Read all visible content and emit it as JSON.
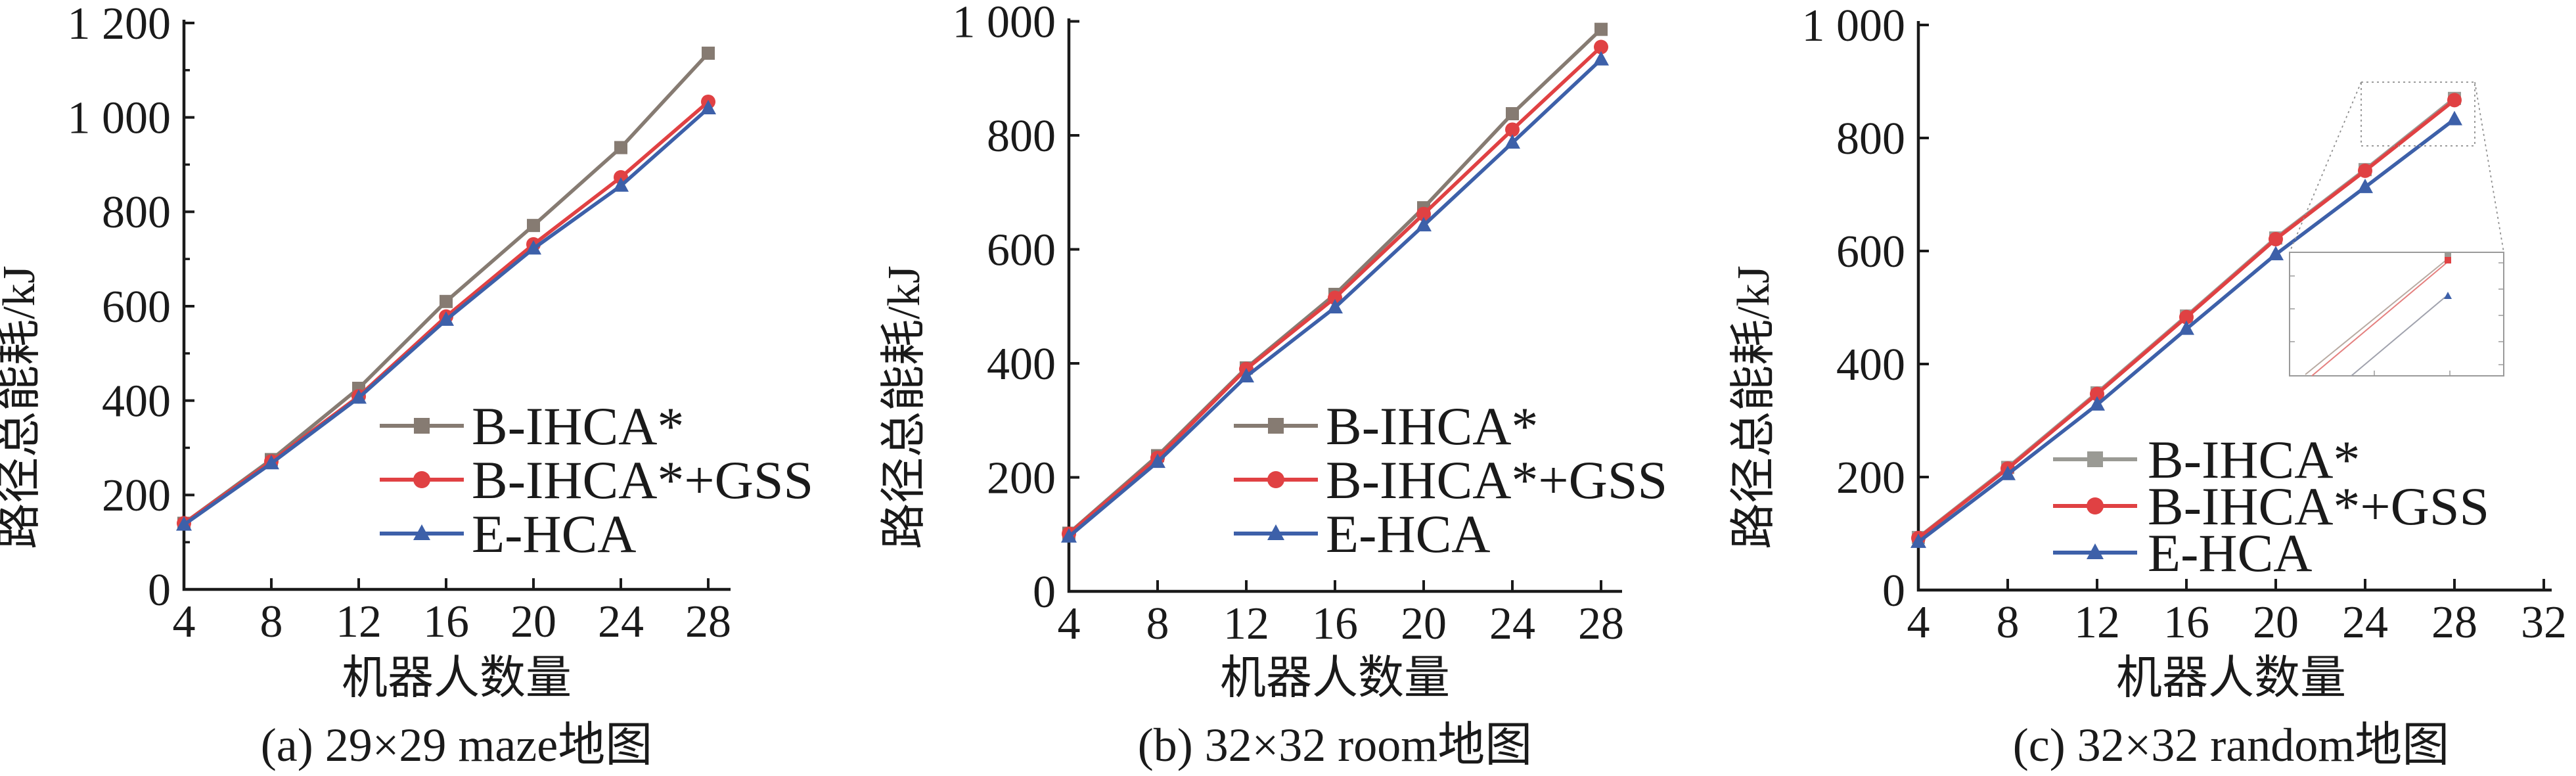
{
  "figure": {
    "background": "#ffffff",
    "text_color": "#1a1a1a",
    "axis_color": "#1a1a1a"
  },
  "chart_data": [
    {
      "type": "line",
      "caption": "(a) 29×29 maze地图",
      "xlabel": "机器人数量",
      "ylabel": "路径总能耗/kJ",
      "x": [
        4,
        8,
        12,
        16,
        20,
        24,
        28
      ],
      "xtick_labels": [
        "4",
        "8",
        "12",
        "16",
        "20",
        "24",
        "28"
      ],
      "ylim": [
        0,
        1200
      ],
      "yticks": [
        0,
        200,
        400,
        600,
        800,
        1000,
        1200
      ],
      "ytick_labels": [
        "0",
        "200",
        "400",
        "600",
        "800",
        "1 000",
        "1 200"
      ],
      "minor_ytick_step": 100,
      "grid": false,
      "legend_position": "inside lower right",
      "series": [
        {
          "name": "B-IHCA*",
          "color": "#867b72",
          "marker": "square",
          "values": [
            140,
            275,
            426,
            610,
            771,
            936,
            1136
          ]
        },
        {
          "name": "B-IHCA*+GSS",
          "color": "#e04143",
          "marker": "circle",
          "values": [
            140,
            271,
            409,
            578,
            731,
            873,
            1033
          ]
        },
        {
          "name": "E-HCA",
          "color": "#3d60a9",
          "marker": "triangle",
          "values": [
            137,
            267,
            406,
            571,
            722,
            855,
            1019
          ]
        }
      ]
    },
    {
      "type": "line",
      "caption": "(b) 32×32 room地图",
      "xlabel": "机器人数量",
      "ylabel": "路径总能耗/kJ",
      "x": [
        4,
        8,
        12,
        16,
        20,
        24,
        28
      ],
      "xtick_labels": [
        "4",
        "8",
        "12",
        "16",
        "20",
        "24",
        "28"
      ],
      "ylim": [
        0,
        1000
      ],
      "yticks": [
        0,
        200,
        400,
        600,
        800,
        1000
      ],
      "ytick_labels": [
        "0",
        "200",
        "400",
        "600",
        "800",
        "1 000"
      ],
      "minor_ytick_step": null,
      "grid": false,
      "legend_position": "inside lower right",
      "series": [
        {
          "name": "B-IHCA*",
          "color": "#867b72",
          "marker": "square",
          "values": [
            102,
            238,
            392,
            521,
            673,
            838,
            986
          ]
        },
        {
          "name": "B-IHCA*+GSS",
          "color": "#e04143",
          "marker": "circle",
          "values": [
            101,
            234,
            390,
            515,
            662,
            810,
            955
          ]
        },
        {
          "name": "E-HCA",
          "color": "#3d60a9",
          "marker": "triangle",
          "values": [
            96,
            227,
            377,
            498,
            642,
            787,
            933
          ]
        }
      ]
    },
    {
      "type": "line",
      "caption": "(c) 32×32 random地图",
      "xlabel": "机器人数量",
      "ylabel": "路径总能耗/kJ",
      "x": [
        4,
        8,
        12,
        16,
        20,
        24,
        28
      ],
      "xtick_labels": [
        "4",
        "8",
        "12",
        "16",
        "20",
        "24",
        "28",
        "32"
      ],
      "xtick_values": [
        4,
        8,
        12,
        16,
        20,
        24,
        28,
        32
      ],
      "ylim": [
        0,
        1000
      ],
      "yticks": [
        0,
        200,
        400,
        600,
        800,
        1000
      ],
      "ytick_labels": [
        "0",
        "200",
        "400",
        "600",
        "800",
        "1 000"
      ],
      "minor_ytick_step": null,
      "grid": false,
      "legend_position": "inside lower right",
      "inset_zoom": {
        "source_x_range": [
          23.8,
          28.9
        ],
        "source_y_range": [
          786,
          899
        ],
        "shows": "magnified overlap of B-IHCA* and B-IHCA*+GSS at x=28 with E-HCA below"
      },
      "series": [
        {
          "name": "B-IHCA*",
          "color": "#9a9a94",
          "marker": "square",
          "values": [
            93,
            217,
            349,
            485,
            623,
            744,
            870
          ]
        },
        {
          "name": "B-IHCA*+GSS",
          "color": "#e04143",
          "marker": "circle",
          "values": [
            92,
            215,
            347,
            483,
            621,
            742,
            867
          ]
        },
        {
          "name": "E-HCA",
          "color": "#3d60a9",
          "marker": "triangle",
          "values": [
            85,
            205,
            328,
            462,
            594,
            713,
            833
          ]
        }
      ]
    }
  ]
}
